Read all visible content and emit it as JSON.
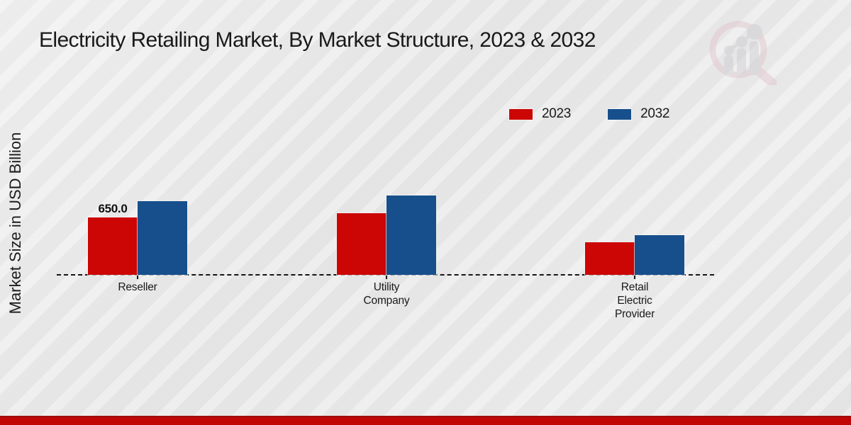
{
  "title": "Electricity Retailing Market, By Market Structure, 2023 & 2032",
  "ylabel": "Market Size in USD Billion",
  "legend": {
    "items": [
      {
        "label": "2023",
        "color": "#cc0505"
      },
      {
        "label": "2032",
        "color": "#164f8c"
      }
    ]
  },
  "chart_data": {
    "type": "bar",
    "categories": [
      "Reseller",
      "Utility Company",
      "Retail Electric Provider"
    ],
    "series": [
      {
        "name": "2023",
        "color": "#cc0505",
        "values": [
          650.0,
          700,
          370
        ]
      },
      {
        "name": "2032",
        "color": "#164f8c",
        "values": [
          835,
          895,
          450
        ]
      }
    ],
    "annotations": [
      {
        "text": "650.0",
        "series_index": 0,
        "category_index": 0
      }
    ],
    "title": "Electricity Retailing Market, By Market Structure, 2023 & 2032",
    "xlabel": "",
    "ylabel": "Market Size in USD Billion",
    "ylim": [
      0,
      1000
    ],
    "grid": false,
    "legend_position": "upper right",
    "baseline_style": "dashed"
  },
  "colors": {
    "accent_red": "#c10606",
    "bar_red": "#cc0505",
    "bar_blue": "#164f8c",
    "background": "#e9e9e9",
    "title_text": "#191919",
    "watermark_pink": "#dfc0c8",
    "watermark_gray": "#c8c8cd"
  },
  "watermark": {
    "name": "market-research-magnifier-logo"
  }
}
